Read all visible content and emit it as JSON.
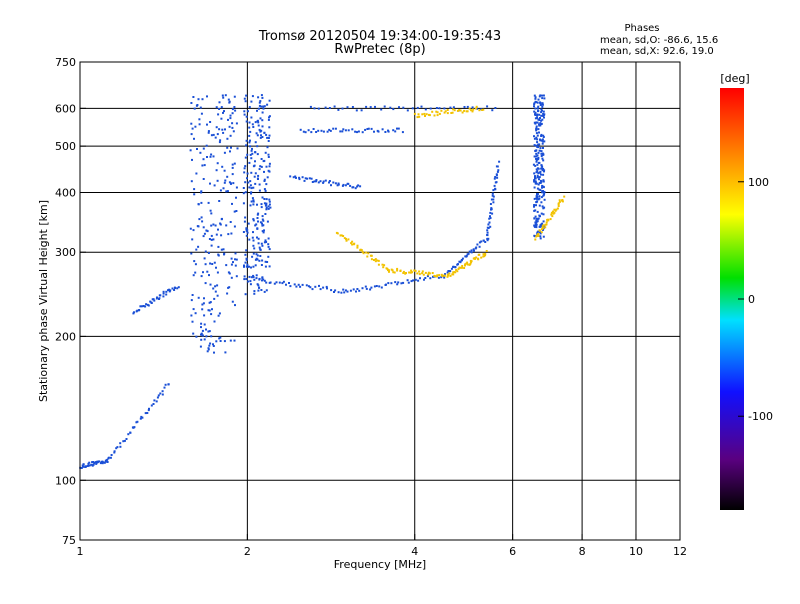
{
  "chart_data": {
    "type": "scatter",
    "title": "Tromsø 20120504 19:34:00-19:35:43",
    "subtitle": "RwPretec (8p)",
    "phase_header": "Phases",
    "phase_line_o": "mean, sd,O: -86.6, 15.6",
    "phase_line_x": "mean, sd,X:  92.6, 19.0",
    "xlabel": "Frequency [MHz]",
    "ylabel": "Stationary phase Virtual Height [km]",
    "x_scale": "log",
    "y_scale": "log",
    "xlim": [
      1,
      12
    ],
    "ylim": [
      75,
      750
    ],
    "x_ticks": [
      1,
      2,
      4,
      6,
      8,
      10,
      12
    ],
    "x_tick_labels": [
      "1",
      "2",
      "4",
      "6",
      "8",
      "10",
      "12"
    ],
    "y_ticks": [
      75,
      100,
      200,
      300,
      400,
      500,
      600,
      750
    ],
    "y_tick_labels": [
      "75",
      "100",
      "200",
      "300",
      "400",
      "500",
      "600",
      "750"
    ],
    "grid": true,
    "colorbar": {
      "label": "[deg]",
      "range": [
        -180,
        180
      ],
      "ticks": [
        100,
        0,
        -100
      ],
      "tick_labels": [
        "100",
        "0",
        "-100"
      ]
    },
    "series": [
      {
        "segments": [
          {
            "x0": 1.0,
            "x1": 1.12,
            "y0": 107,
            "y1": 110
          },
          {
            "x0": 1.12,
            "x1": 1.45,
            "y0": 110,
            "y1": 160
          },
          {
            "x0": 1.25,
            "x1": 1.5,
            "y0": 225,
            "y1": 255
          },
          {
            "x0": 2.0,
            "x1": 3.0,
            "y0": 265,
            "y1": 248
          },
          {
            "x0": 3.0,
            "x1": 4.5,
            "y0": 248,
            "y1": 268
          },
          {
            "x0": 4.5,
            "x1": 5.4,
            "y0": 268,
            "y1": 320
          },
          {
            "x0": 5.4,
            "x1": 5.65,
            "y0": 320,
            "y1": 460
          },
          {
            "x0": 2.4,
            "x1": 3.2,
            "y0": 430,
            "y1": 410
          },
          {
            "x0": 2.5,
            "x1": 3.8,
            "y0": 540,
            "y1": 540
          },
          {
            "x0": 2.6,
            "x1": 5.6,
            "y0": 600,
            "y1": 600
          }
        ],
        "blocks": [
          {
            "x0": 1.58,
            "x1": 1.92,
            "y0": 185,
            "y1": 640
          },
          {
            "x0": 1.97,
            "x1": 2.2,
            "y0": 245,
            "y1": 640
          },
          {
            "x0": 6.55,
            "x1": 6.85,
            "y0": 320,
            "y1": 640
          }
        ]
      },
      {
        "segments": [
          {
            "x0": 2.9,
            "x1": 3.6,
            "y0": 330,
            "y1": 275
          },
          {
            "x0": 3.6,
            "x1": 4.6,
            "y0": 275,
            "y1": 268
          },
          {
            "x0": 4.6,
            "x1": 5.4,
            "y0": 268,
            "y1": 300
          },
          {
            "x0": 6.6,
            "x1": 7.4,
            "y0": 320,
            "y1": 390
          },
          {
            "x0": 4.0,
            "x1": 5.3,
            "y0": 580,
            "y1": 600
          }
        ],
        "blocks": []
      }
    ]
  },
  "colors": {
    "grid": "#000000",
    "axis": "#000000",
    "o_mode": "#1a4fd6",
    "x_mode": "#f2c200"
  }
}
